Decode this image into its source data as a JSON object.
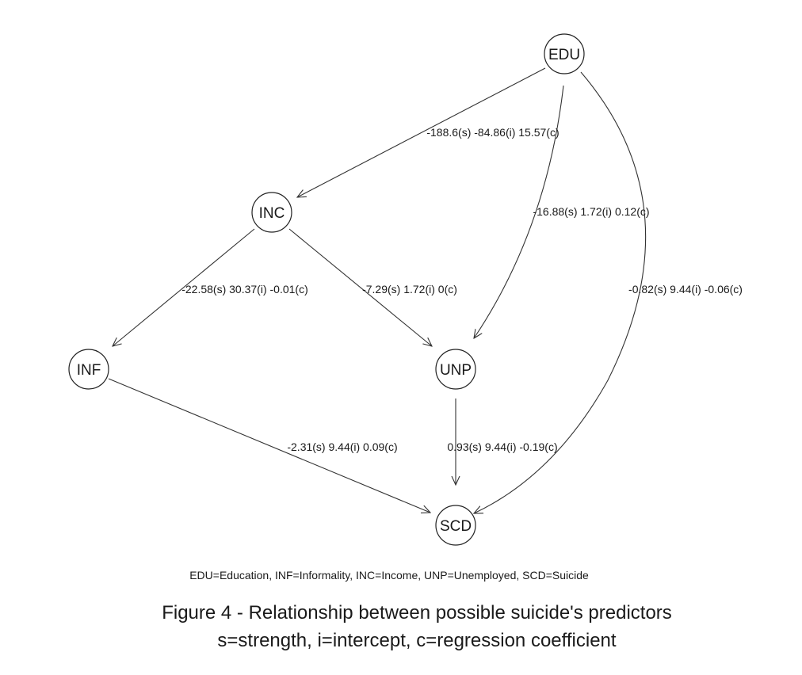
{
  "nodes": [
    {
      "id": "EDU",
      "label": "EDU"
    },
    {
      "id": "INC",
      "label": "INC"
    },
    {
      "id": "INF",
      "label": "INF"
    },
    {
      "id": "UNP",
      "label": "UNP"
    },
    {
      "id": "SCD",
      "label": "SCD"
    }
  ],
  "edges": [
    {
      "from": "EDU",
      "to": "INC",
      "label": "-188.6(s) -84.86(i) 15.57(c)"
    },
    {
      "from": "EDU",
      "to": "UNP",
      "label": "-16.88(s) 1.72(i) 0.12(c)"
    },
    {
      "from": "EDU",
      "to": "SCD",
      "label": "-0.82(s) 9.44(i) -0.06(c)"
    },
    {
      "from": "INC",
      "to": "INF",
      "label": "-22.58(s) 30.37(i) -0.01(c)"
    },
    {
      "from": "INC",
      "to": "UNP",
      "label": "-7.29(s) 1.72(i) 0(c)"
    },
    {
      "from": "INF",
      "to": "SCD",
      "label": "-2.31(s) 9.44(i) 0.09(c)"
    },
    {
      "from": "UNP",
      "to": "SCD",
      "label": "0.93(s) 9.44(i) -0.19(c)"
    }
  ],
  "legend": "EDU=Education, INF=Informality, INC=Income, UNP=Unemployed, SCD=Suicide",
  "caption": {
    "line1": "Figure 4 - Relationship between possible suicide's predictors",
    "line2": "s=strength, i=intercept, c=regression coefficient"
  }
}
